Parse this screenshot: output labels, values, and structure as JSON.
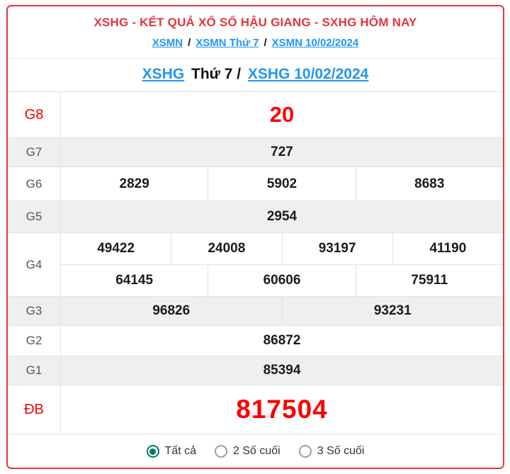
{
  "header": {
    "title": "XSHG - KẾT QUẢ XỔ SỐ HẬU GIANG - SXHG HÔM NAY",
    "separator": "/",
    "breadcrumb": [
      {
        "label": "XSMN"
      },
      {
        "label": "XSMN Thứ 7"
      },
      {
        "label": "XSMN 10/02/2024"
      }
    ],
    "subtitle": {
      "station_link": "XSHG",
      "middle": "Thứ 7 /",
      "date_link": "XSHG 10/02/2024"
    }
  },
  "results": {
    "rows": [
      {
        "label": "G8",
        "numbers": [
          "20"
        ]
      },
      {
        "label": "G7",
        "numbers": [
          "727"
        ]
      },
      {
        "label": "G6",
        "numbers": [
          "2829",
          "5902",
          "8683"
        ]
      },
      {
        "label": "G5",
        "numbers": [
          "2954"
        ]
      },
      {
        "label": "G4",
        "lines": [
          [
            "49422",
            "24008",
            "93197",
            "41190"
          ],
          [
            "64145",
            "60606",
            "75911"
          ]
        ]
      },
      {
        "label": "G3",
        "numbers": [
          "96826",
          "93231"
        ]
      },
      {
        "label": "G2",
        "numbers": [
          "86872"
        ]
      },
      {
        "label": "G1",
        "numbers": [
          "85394"
        ]
      },
      {
        "label": "ĐB",
        "numbers": [
          "817504"
        ]
      }
    ]
  },
  "footer": {
    "options": [
      {
        "label": "Tất cả",
        "selected": true
      },
      {
        "label": "2 Số cuối",
        "selected": false
      },
      {
        "label": "3 Số cuối",
        "selected": false
      }
    ]
  },
  "colors": {
    "accent_red": "#e3353f",
    "number_red": "#fb0000",
    "link_blue": "#2196f3",
    "radio_teal": "#00796b",
    "row_alt": "#efefef",
    "border_gray": "#e2e2e2",
    "label_gray": "#555555"
  }
}
